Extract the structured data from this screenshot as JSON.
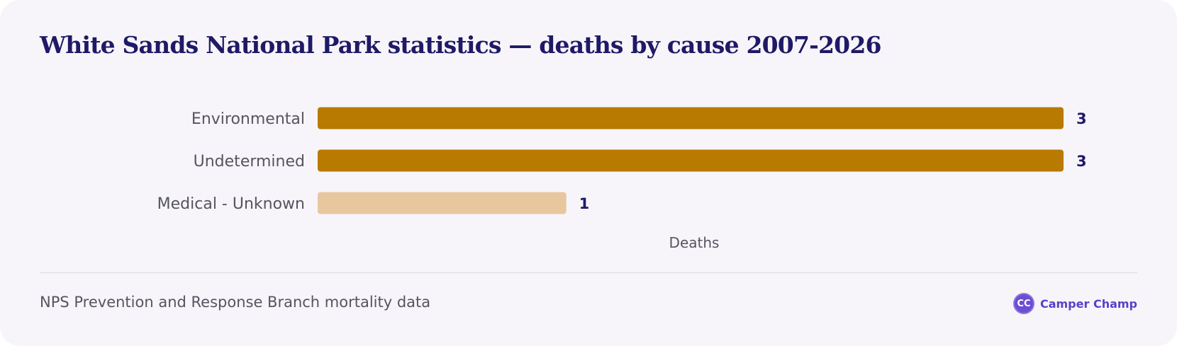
{
  "chart_data": {
    "type": "bar",
    "orientation": "horizontal",
    "title": "White Sands National Park statistics — deaths by cause 2007-2026",
    "categories": [
      "Environmental",
      "Undetermined",
      "Medical - Unknown"
    ],
    "values": [
      3,
      3,
      1
    ],
    "value_labels": [
      "3",
      "3",
      "1"
    ],
    "xlabel": "Deaths",
    "ylabel": "",
    "xlim": [
      0,
      3
    ],
    "grid": false,
    "legend": "none",
    "colors": [
      "#b87a00",
      "#b87a00",
      "#e8c69e"
    ]
  },
  "footer": {
    "source": "NPS Prevention and Response Branch mortality data",
    "brand_name": "Camper Champ",
    "brand_logo_text": "CC"
  },
  "colors": {
    "background": "#f7f5fa",
    "title": "#1e1a66",
    "brand": "#5b3fc9"
  }
}
